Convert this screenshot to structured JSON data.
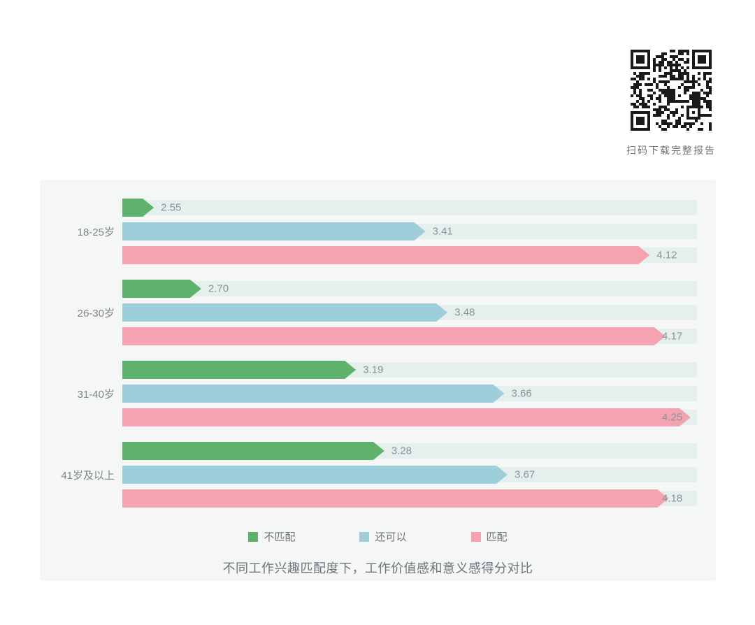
{
  "qr": {
    "caption": "扫码下载完整报告"
  },
  "chart_data": {
    "type": "bar",
    "orientation": "horizontal",
    "title": "不同工作兴趣匹配度下，工作价值感和意义感得分对比",
    "categories": [
      "18-25岁",
      "26-30岁",
      "31-40岁",
      "41岁及以上"
    ],
    "series": [
      {
        "name": "不匹配",
        "color": "#5fb26b",
        "values": [
          2.55,
          2.7,
          3.19,
          3.28
        ]
      },
      {
        "name": "还可以",
        "color": "#9fcedb",
        "values": [
          3.41,
          3.48,
          3.66,
          3.67
        ]
      },
      {
        "name": "匹配",
        "color": "#f4a3b1",
        "values": [
          4.12,
          4.17,
          4.25,
          4.18
        ]
      }
    ],
    "xlim": [
      2.45,
      4.27
    ],
    "value_labels": true,
    "grid": false,
    "legend_position": "bottom",
    "track_color": "#e5efee"
  }
}
